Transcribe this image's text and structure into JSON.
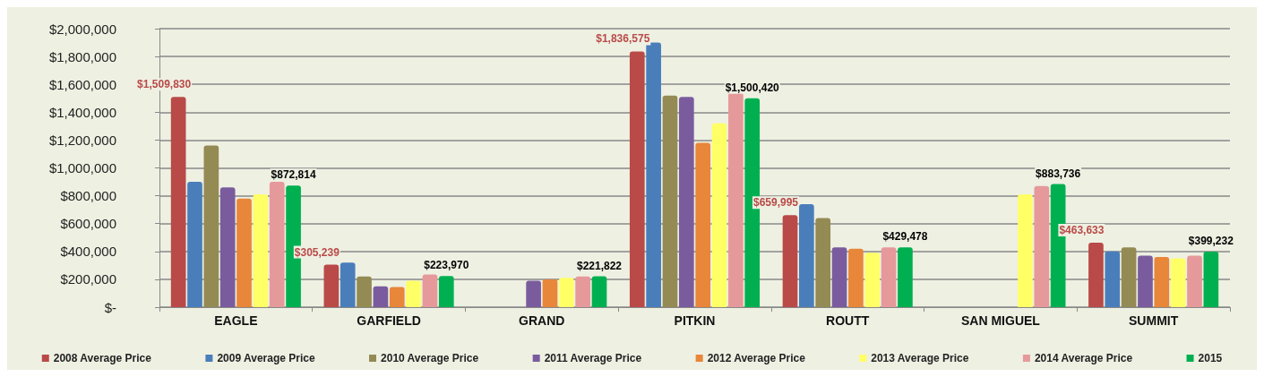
{
  "chart_data": {
    "type": "bar",
    "categories": [
      "EAGLE",
      "GARFIELD",
      "GRAND",
      "PITKIN",
      "ROUTT",
      "SAN MIGUEL",
      "SUMMIT"
    ],
    "series": [
      {
        "name": "2008 Average Price",
        "color": "#b94a48",
        "values": [
          1509830,
          305239,
          0,
          1836575,
          659995,
          0,
          463633
        ],
        "value_labels": [
          "$1,509,830",
          "$305,239",
          null,
          "$1,836,575",
          "$659,995",
          null,
          "$463,633"
        ]
      },
      {
        "name": "2009 Average Price",
        "color": "#4a7ebb",
        "values": [
          900000,
          320000,
          0,
          1900000,
          740000,
          0,
          400000
        ]
      },
      {
        "name": "2010 Average Price",
        "color": "#948a54",
        "values": [
          1160000,
          220000,
          0,
          1520000,
          640000,
          null,
          430000
        ]
      },
      {
        "name": "2011 Average Price",
        "color": "#7a5c9e",
        "values": [
          860000,
          150000,
          190000,
          1510000,
          430000,
          0,
          370000
        ]
      },
      {
        "name": "2012 Average Price",
        "color": "#e8863a",
        "values": [
          780000,
          145000,
          200000,
          1180000,
          420000,
          0,
          360000
        ]
      },
      {
        "name": "2013 Average Price",
        "color": "#ffff66",
        "values": [
          810000,
          190000,
          210000,
          1320000,
          390000,
          810000,
          350000
        ]
      },
      {
        "name": "2014 Average Price",
        "color": "#e6999a",
        "values": [
          900000,
          235000,
          220000,
          1540000,
          430000,
          870000,
          370000
        ]
      },
      {
        "name": "2015",
        "color": "#00b050",
        "values": [
          872814,
          223970,
          221822,
          1500420,
          429478,
          883736,
          399232
        ],
        "value_labels": [
          "$872,814",
          "$223,970",
          "$221,822",
          "$1,500,420",
          "$429,478",
          "$883,736",
          "$399,232"
        ]
      }
    ],
    "ylim": [
      0,
      2000000
    ],
    "yticks": [
      {
        "value": 0,
        "label": "$-"
      },
      {
        "value": 200000,
        "label": "$200,000"
      },
      {
        "value": 400000,
        "label": "$400,000"
      },
      {
        "value": 600000,
        "label": "$600,000"
      },
      {
        "value": 800000,
        "label": "$800,000"
      },
      {
        "value": 1000000,
        "label": "$1,000,000"
      },
      {
        "value": 1200000,
        "label": "$1,200,000"
      },
      {
        "value": 1400000,
        "label": "$1,400,000"
      },
      {
        "value": 1600000,
        "label": "$1,600,000"
      },
      {
        "value": 1800000,
        "label": "$1,800,000"
      },
      {
        "value": 2000000,
        "label": "$2,000,000"
      }
    ],
    "grid": "y",
    "legend": "bottom"
  }
}
